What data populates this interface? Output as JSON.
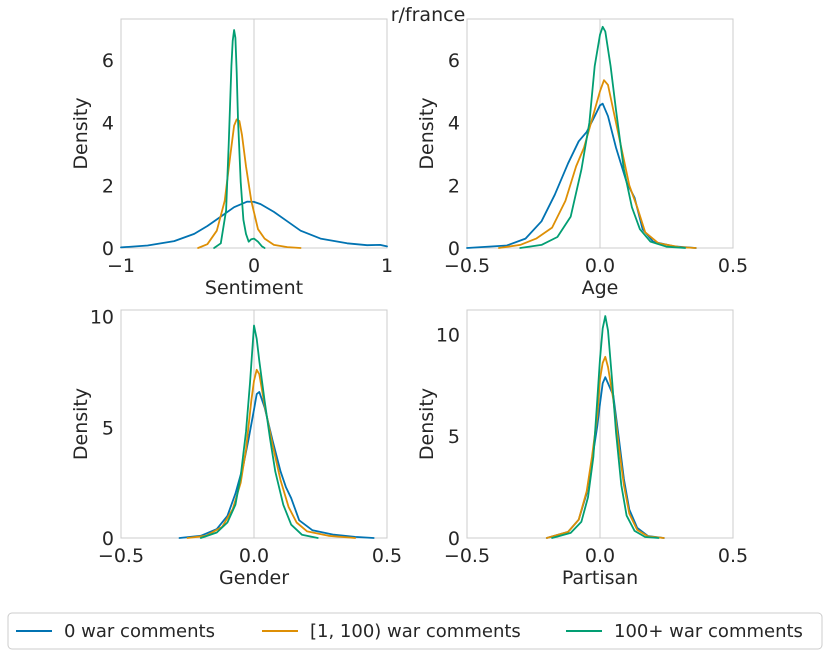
{
  "chart_data": {
    "type": "line",
    "title": "r/france",
    "legend": {
      "placement": "bottom",
      "entries": [
        {
          "label": "0 war comments",
          "color": "#0173b2"
        },
        {
          "label": "[1, 100) war comments",
          "color": "#de8f05"
        },
        {
          "label": "100+ war comments",
          "color": "#029e73"
        }
      ]
    },
    "panels": [
      {
        "xlabel": "Sentiment",
        "ylabel": "Density",
        "xlim": [
          -1,
          1
        ],
        "ylim": [
          0,
          7.3
        ],
        "xticks": [
          -1,
          0,
          1
        ],
        "xtick_labels": [
          "−1",
          "0",
          "1"
        ],
        "yticks": [
          0,
          2,
          4,
          6
        ],
        "ytick_labels": [
          "0",
          "2",
          "4",
          "6"
        ],
        "vline_x": 0,
        "series": [
          {
            "name": "0 war comments",
            "color": "#0173b2",
            "x": [
              -1.0,
              -0.8,
              -0.6,
              -0.45,
              -0.35,
              -0.25,
              -0.15,
              -0.05,
              0.0,
              0.05,
              0.15,
              0.25,
              0.35,
              0.5,
              0.7,
              0.85,
              0.95,
              1.0
            ],
            "y": [
              0.02,
              0.08,
              0.22,
              0.45,
              0.7,
              1.0,
              1.3,
              1.48,
              1.47,
              1.4,
              1.15,
              0.85,
              0.55,
              0.3,
              0.15,
              0.09,
              0.1,
              0.05
            ]
          },
          {
            "name": "[1, 100) war comments",
            "color": "#de8f05",
            "x": [
              -0.42,
              -0.35,
              -0.28,
              -0.22,
              -0.18,
              -0.15,
              -0.13,
              -0.11,
              -0.09,
              -0.06,
              -0.02,
              0.03,
              0.08,
              0.15,
              0.25,
              0.35
            ],
            "y": [
              0.0,
              0.12,
              0.55,
              1.5,
              2.9,
              3.9,
              4.1,
              4.05,
              3.6,
              2.6,
              1.5,
              0.6,
              0.3,
              0.1,
              0.03,
              0.0
            ]
          },
          {
            "name": "100+ war comments",
            "color": "#029e73",
            "x": [
              -0.3,
              -0.25,
              -0.21,
              -0.19,
              -0.17,
              -0.16,
              -0.15,
              -0.14,
              -0.13,
              -0.12,
              -0.1,
              -0.08,
              -0.06,
              -0.04,
              -0.02,
              0.0,
              0.03,
              0.06,
              0.08
            ],
            "y": [
              0.0,
              0.15,
              1.2,
              3.3,
              5.8,
              6.6,
              6.95,
              6.7,
              5.6,
              4.1,
              2.1,
              0.9,
              0.45,
              0.2,
              0.28,
              0.3,
              0.2,
              0.05,
              0.0
            ]
          }
        ]
      },
      {
        "xlabel": "Age",
        "ylabel": "Density",
        "xlim": [
          -0.5,
          0.5
        ],
        "ylim": [
          0,
          7.3
        ],
        "xticks": [
          -0.5,
          0.0,
          0.5
        ],
        "xtick_labels": [
          "−0.5",
          "0.0",
          "0.5"
        ],
        "yticks": [
          0,
          2,
          4,
          6
        ],
        "ytick_labels": [
          "0",
          "2",
          "4",
          "6"
        ],
        "vline_x": 0.0,
        "series": [
          {
            "name": "0 war comments",
            "color": "#0173b2",
            "x": [
              -0.5,
              -0.35,
              -0.28,
              -0.22,
              -0.17,
              -0.12,
              -0.08,
              -0.05,
              -0.02,
              0.0,
              0.01,
              0.03,
              0.06,
              0.1,
              0.13,
              0.16,
              0.2,
              0.28,
              0.36
            ],
            "y": [
              0.0,
              0.08,
              0.3,
              0.85,
              1.7,
              2.7,
              3.4,
              3.7,
              4.2,
              4.55,
              4.6,
              4.2,
              3.2,
              2.1,
              1.6,
              0.6,
              0.2,
              0.05,
              0.0
            ]
          },
          {
            "name": "[1, 100) war comments",
            "color": "#de8f05",
            "x": [
              -0.38,
              -0.3,
              -0.24,
              -0.18,
              -0.13,
              -0.09,
              -0.06,
              -0.03,
              0.0,
              0.015,
              0.03,
              0.05,
              0.08,
              0.11,
              0.14,
              0.17,
              0.22,
              0.3,
              0.36
            ],
            "y": [
              0.0,
              0.1,
              0.3,
              0.65,
              1.5,
              2.6,
              3.2,
              4.1,
              5.0,
              5.35,
              5.2,
              4.4,
              3.2,
              2.0,
              1.3,
              0.5,
              0.15,
              0.03,
              0.0
            ]
          },
          {
            "name": "100+ war comments",
            "color": "#029e73",
            "x": [
              -0.3,
              -0.22,
              -0.16,
              -0.11,
              -0.07,
              -0.04,
              -0.02,
              0.0,
              0.01,
              0.02,
              0.04,
              0.06,
              0.09,
              0.12,
              0.15,
              0.19,
              0.25,
              0.32
            ],
            "y": [
              0.0,
              0.1,
              0.35,
              1.0,
              2.5,
              4.0,
              5.8,
              6.8,
              7.05,
              6.9,
              5.8,
              4.4,
              2.5,
              1.3,
              0.6,
              0.2,
              0.04,
              0.0
            ]
          }
        ]
      },
      {
        "xlabel": "Gender",
        "ylabel": "Density",
        "xlim": [
          -0.5,
          0.5
        ],
        "ylim": [
          0,
          10.3
        ],
        "xticks": [
          -0.5,
          0.0,
          0.5
        ],
        "xtick_labels": [
          "−0.5",
          "0.0",
          "0.5"
        ],
        "yticks": [
          0,
          5,
          10
        ],
        "ytick_labels": [
          "0",
          "5",
          "10"
        ],
        "vline_x": 0.0,
        "series": [
          {
            "name": "0 war comments",
            "color": "#0173b2",
            "x": [
              -0.28,
              -0.2,
              -0.14,
              -0.1,
              -0.07,
              -0.04,
              -0.02,
              0.0,
              0.01,
              0.02,
              0.04,
              0.07,
              0.1,
              0.12,
              0.14,
              0.17,
              0.22,
              0.3,
              0.38,
              0.45
            ],
            "y": [
              0.0,
              0.1,
              0.4,
              1.0,
              2.0,
              3.3,
              4.5,
              5.8,
              6.5,
              6.6,
              5.9,
              4.4,
              3.0,
              2.3,
              1.8,
              0.8,
              0.35,
              0.15,
              0.05,
              0.0
            ]
          },
          {
            "name": "[1, 100) war comments",
            "color": "#de8f05",
            "x": [
              -0.25,
              -0.18,
              -0.12,
              -0.08,
              -0.05,
              -0.03,
              -0.01,
              0.0,
              0.01,
              0.02,
              0.04,
              0.07,
              0.1,
              0.13,
              0.16,
              0.2,
              0.28,
              0.38
            ],
            "y": [
              0.0,
              0.1,
              0.5,
              1.3,
              2.5,
              4.0,
              6.2,
              7.1,
              7.6,
              7.4,
              6.0,
              4.2,
              2.6,
              1.4,
              0.7,
              0.3,
              0.1,
              0.0
            ]
          },
          {
            "name": "100+ war comments",
            "color": "#029e73",
            "x": [
              -0.2,
              -0.14,
              -0.1,
              -0.07,
              -0.05,
              -0.03,
              -0.015,
              0.0,
              0.01,
              0.02,
              0.04,
              0.06,
              0.08,
              0.11,
              0.14,
              0.18,
              0.24
            ],
            "y": [
              0.0,
              0.25,
              0.7,
              1.5,
              2.8,
              4.8,
              7.0,
              9.6,
              9.0,
              8.0,
              6.2,
              4.5,
              3.0,
              1.5,
              0.6,
              0.15,
              0.0
            ]
          }
        ]
      },
      {
        "xlabel": "Partisan",
        "ylabel": "Density",
        "xlim": [
          -0.5,
          0.5
        ],
        "ylim": [
          0,
          11.2
        ],
        "xticks": [
          -0.5,
          0.0,
          0.5
        ],
        "xtick_labels": [
          "−0.5",
          "0.0",
          "0.5"
        ],
        "yticks": [
          0,
          5,
          10
        ],
        "ytick_labels": [
          "0",
          "5",
          "10"
        ],
        "vline_x": 0.0,
        "series": [
          {
            "name": "0 war comments",
            "color": "#0173b2",
            "x": [
              -0.2,
              -0.12,
              -0.08,
              -0.05,
              -0.03,
              -0.01,
              0.0,
              0.01,
              0.02,
              0.03,
              0.05,
              0.07,
              0.09,
              0.11,
              0.14,
              0.18,
              0.24
            ],
            "y": [
              0.0,
              0.3,
              0.9,
              2.2,
              3.8,
              5.5,
              6.6,
              7.6,
              7.9,
              7.6,
              7.0,
              5.0,
              2.9,
              1.4,
              0.5,
              0.1,
              0.0
            ]
          },
          {
            "name": "[1, 100) war comments",
            "color": "#de8f05",
            "x": [
              -0.2,
              -0.12,
              -0.08,
              -0.05,
              -0.03,
              -0.01,
              0.0,
              0.01,
              0.02,
              0.03,
              0.05,
              0.07,
              0.09,
              0.11,
              0.14,
              0.18,
              0.24
            ],
            "y": [
              0.0,
              0.3,
              0.9,
              2.3,
              4.0,
              6.0,
              7.8,
              8.6,
              8.9,
              8.4,
              6.8,
              4.6,
              2.6,
              1.2,
              0.4,
              0.08,
              0.0
            ]
          },
          {
            "name": "100+ war comments",
            "color": "#029e73",
            "x": [
              -0.18,
              -0.11,
              -0.07,
              -0.045,
              -0.025,
              -0.01,
              0.0,
              0.01,
              0.02,
              0.03,
              0.045,
              0.06,
              0.08,
              0.1,
              0.13,
              0.17,
              0.22
            ],
            "y": [
              0.0,
              0.25,
              0.8,
              2.0,
              4.0,
              6.8,
              8.8,
              10.3,
              10.9,
              10.2,
              7.8,
              5.2,
              2.6,
              1.1,
              0.35,
              0.05,
              0.0
            ]
          }
        ]
      }
    ]
  }
}
